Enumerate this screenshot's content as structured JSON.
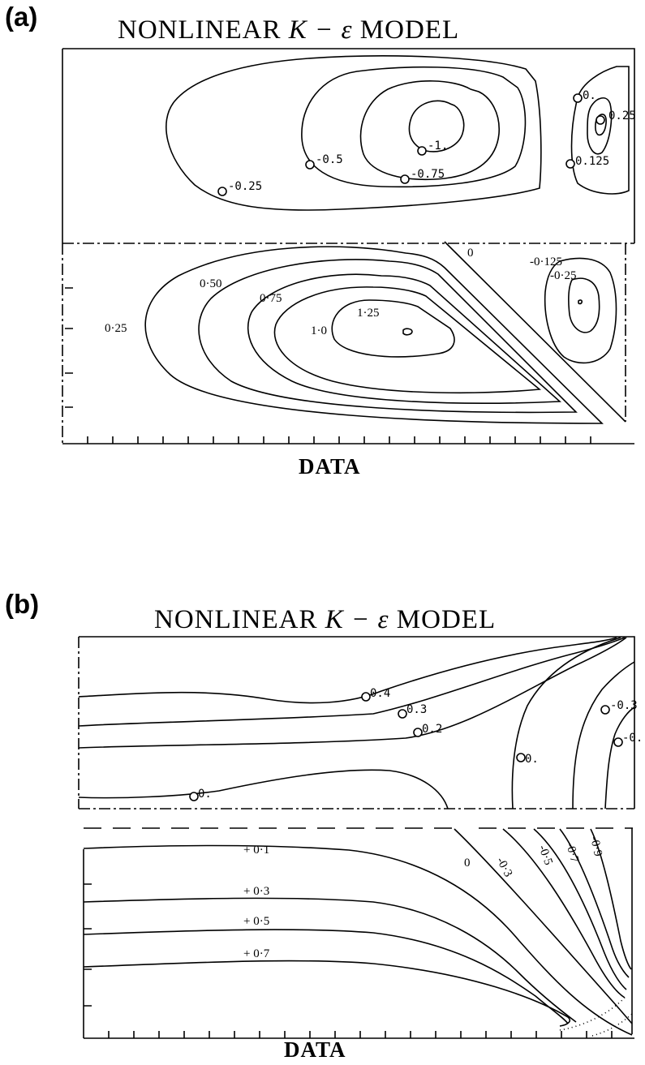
{
  "panel_a": {
    "letter": "(a)",
    "title_prefix": "NONLINEAR",
    "title_symbol": "K − ε",
    "title_suffix": "MODEL",
    "top_labels": {
      "m025": "-0.25",
      "m05": "-0.5",
      "m075": "-0.75",
      "m1": "-1.",
      "zero": "0.",
      "p025": "0.25",
      "p0125": "0.125"
    },
    "bottom_labels": {
      "l025": "0·25",
      "l050": "0·50",
      "l075": "0·75",
      "l10": "1·0",
      "l125": "1·25",
      "zero": "0",
      "m0125": "-0·125",
      "m025": "-0·25"
    },
    "caption": "DATA"
  },
  "panel_b": {
    "letter": "(b)",
    "title_prefix": "NONLINEAR",
    "title_symbol": "K − ε",
    "title_suffix": "MODEL",
    "top_labels": {
      "p04": "0.4",
      "p03": "0.3",
      "p02": "0.2",
      "zero_left": "0.",
      "zero_mid": "0.",
      "m03": "-0.3",
      "m_right": "-0."
    },
    "bottom_labels": {
      "p01": "+ 0·1",
      "p03": "+ 0·3",
      "p05": "+ 0·5",
      "p07": "+ 0·7",
      "zero": "0",
      "m03": "-0·3",
      "m05": "-0·5",
      "m07": "-0·7",
      "m09": "-0·9"
    },
    "caption": "DATA"
  }
}
